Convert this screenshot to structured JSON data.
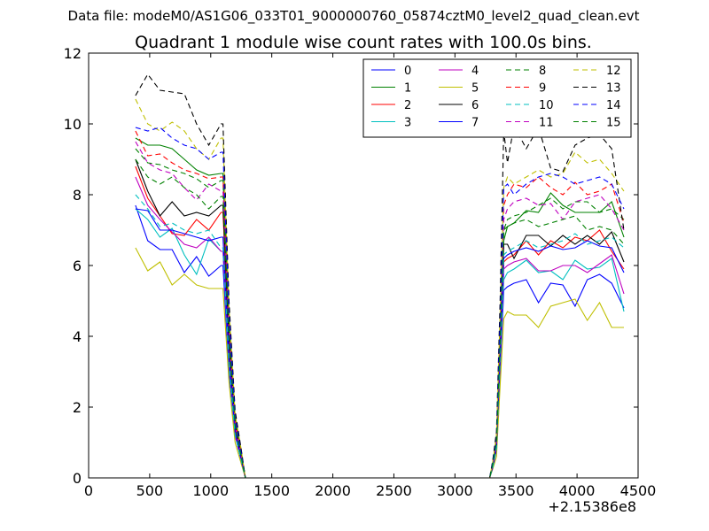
{
  "chart_data": {
    "type": "line",
    "suptitle": "Data file: modeM0/AS1G06_033T01_9000000760_05874cztM0_level2_quad_clean.evt",
    "title": "Quadrant 1 module wise count rates with 100.0s bins.",
    "xlabel": "",
    "ylabel": "",
    "xlim": [
      0,
      4500
    ],
    "ylim": [
      0,
      12
    ],
    "x_offset_label": "+2.15386e8",
    "xticks": [
      0,
      500,
      1000,
      1500,
      2000,
      2500,
      3000,
      3500,
      4000,
      4500
    ],
    "yticks": [
      0,
      2,
      4,
      6,
      8,
      10,
      12
    ],
    "legend_position": "top-right",
    "legend_columns": 4,
    "x": [
      384,
      484,
      584,
      684,
      784,
      884,
      984,
      1084,
      1100,
      1150,
      1200,
      1250,
      1284,
      1384,
      1484,
      1584,
      1684,
      1784,
      1884,
      1984,
      2084,
      2184,
      2284,
      2384,
      2484,
      2584,
      2684,
      2784,
      2884,
      2984,
      3084,
      3184,
      3284,
      3310,
      3340,
      3370,
      3400,
      3430,
      3484,
      3584,
      3684,
      3784,
      3884,
      3984,
      4084,
      4184,
      4284,
      4384
    ],
    "series": [
      {
        "name": "0",
        "color": "#0000ff",
        "dash": false,
        "values": [
          7.7,
          6.7,
          6.45,
          6.45,
          5.8,
          6.25,
          5.7,
          6.0,
          6.0,
          3.0,
          1.2,
          0.5,
          0,
          0,
          0,
          0,
          0,
          0,
          0,
          0,
          0,
          0,
          0,
          0,
          0,
          0,
          0,
          0,
          0,
          0,
          0,
          0,
          0,
          0.3,
          0.8,
          3.0,
          5.3,
          5.4,
          5.5,
          5.6,
          4.95,
          5.5,
          5.45,
          4.85,
          5.6,
          5.75,
          5.5,
          4.8
        ]
      },
      {
        "name": "1",
        "color": "#008000",
        "dash": false,
        "values": [
          9.6,
          9.4,
          9.4,
          9.3,
          9.0,
          8.7,
          8.55,
          8.6,
          8.6,
          4.4,
          1.7,
          0.7,
          0,
          0,
          0,
          0,
          0,
          0,
          0,
          0,
          0,
          0,
          0,
          0,
          0,
          0,
          0,
          0,
          0,
          0,
          0,
          0,
          0,
          0.4,
          1.1,
          4.2,
          6.7,
          7.1,
          7.2,
          7.55,
          7.5,
          8.05,
          7.7,
          7.5,
          7.5,
          7.5,
          7.8,
          6.8
        ]
      },
      {
        "name": "2",
        "color": "#ff0000",
        "dash": false,
        "values": [
          8.8,
          7.9,
          7.4,
          6.9,
          6.85,
          7.3,
          7.0,
          7.5,
          7.5,
          3.8,
          1.4,
          0.6,
          0,
          0,
          0,
          0,
          0,
          0,
          0,
          0,
          0,
          0,
          0,
          0,
          0,
          0,
          0,
          0,
          0,
          0,
          0,
          0,
          0,
          0.35,
          0.9,
          3.6,
          6.1,
          6.2,
          6.3,
          6.7,
          6.3,
          6.7,
          6.5,
          6.8,
          6.7,
          7.0,
          6.4,
          5.9
        ]
      },
      {
        "name": "3",
        "color": "#00bfbf",
        "dash": false,
        "values": [
          7.6,
          7.3,
          6.8,
          7.05,
          6.3,
          5.75,
          6.75,
          6.4,
          6.4,
          3.2,
          1.2,
          0.5,
          0,
          0,
          0,
          0,
          0,
          0,
          0,
          0,
          0,
          0,
          0,
          0,
          0,
          0,
          0,
          0,
          0,
          0,
          0,
          0,
          0,
          0.3,
          0.8,
          3.1,
          5.6,
          5.8,
          5.9,
          6.15,
          5.8,
          5.85,
          5.6,
          6.15,
          5.9,
          5.95,
          6.2,
          4.7
        ]
      },
      {
        "name": "4",
        "color": "#bf00bf",
        "dash": false,
        "values": [
          8.5,
          7.7,
          7.3,
          6.95,
          6.6,
          6.5,
          6.8,
          6.4,
          6.4,
          3.3,
          1.2,
          0.5,
          0,
          0,
          0,
          0,
          0,
          0,
          0,
          0,
          0,
          0,
          0,
          0,
          0,
          0,
          0,
          0,
          0,
          0,
          0,
          0,
          0,
          0.3,
          0.8,
          3.2,
          5.9,
          6.0,
          6.1,
          6.2,
          5.85,
          5.85,
          6.0,
          6.0,
          5.8,
          6.05,
          6.3,
          5.2
        ]
      },
      {
        "name": "5",
        "color": "#bfbf00",
        "dash": false,
        "values": [
          6.5,
          5.85,
          6.1,
          5.45,
          5.75,
          5.45,
          5.35,
          5.35,
          5.35,
          2.7,
          1.0,
          0.4,
          0,
          0,
          0,
          0,
          0,
          0,
          0,
          0,
          0,
          0,
          0,
          0,
          0,
          0,
          0,
          0,
          0,
          0,
          0,
          0,
          0,
          0.25,
          0.6,
          2.6,
          4.5,
          4.7,
          4.6,
          4.6,
          4.25,
          4.85,
          4.95,
          5.05,
          4.45,
          4.95,
          4.25,
          4.25
        ]
      },
      {
        "name": "6",
        "color": "#000000",
        "dash": false,
        "values": [
          9.0,
          8.1,
          7.4,
          7.8,
          7.4,
          7.5,
          7.4,
          7.7,
          7.7,
          3.9,
          1.5,
          0.6,
          0,
          0,
          0,
          0,
          0,
          0,
          0,
          0,
          0,
          0,
          0,
          0,
          0,
          0,
          0,
          0,
          0,
          0,
          0,
          0,
          0,
          0.35,
          0.95,
          3.7,
          6.6,
          6.6,
          6.2,
          6.85,
          6.85,
          6.55,
          6.85,
          6.6,
          6.85,
          6.6,
          6.95,
          6.1
        ]
      },
      {
        "name": "7",
        "color": "#0000ff",
        "dash": false,
        "values": [
          7.6,
          7.55,
          7.0,
          7.0,
          6.9,
          6.8,
          6.7,
          6.8,
          6.8,
          3.4,
          1.3,
          0.5,
          0,
          0,
          0,
          0,
          0,
          0,
          0,
          0,
          0,
          0,
          0,
          0,
          0,
          0,
          0,
          0,
          0,
          0,
          0,
          0,
          0,
          0.3,
          0.85,
          3.4,
          6.2,
          6.3,
          6.4,
          6.5,
          6.4,
          6.55,
          6.45,
          6.5,
          6.7,
          6.55,
          6.5,
          5.8
        ]
      },
      {
        "name": "8",
        "color": "#008000",
        "dash": true,
        "values": [
          9.3,
          8.9,
          8.85,
          8.7,
          8.6,
          8.45,
          8.2,
          8.4,
          8.4,
          4.2,
          1.6,
          0.6,
          0,
          0,
          0,
          0,
          0,
          0,
          0,
          0,
          0,
          0,
          0,
          0,
          0,
          0,
          0,
          0,
          0,
          0,
          0,
          0,
          0,
          0.4,
          1.0,
          4.0,
          7.0,
          7.3,
          7.4,
          7.5,
          7.7,
          7.9,
          7.6,
          7.8,
          7.8,
          7.5,
          7.6,
          7.3
        ]
      },
      {
        "name": "9",
        "color": "#ff0000",
        "dash": true,
        "values": [
          9.8,
          9.1,
          9.15,
          8.9,
          8.7,
          8.6,
          8.45,
          8.5,
          8.5,
          4.3,
          1.6,
          0.7,
          0,
          0,
          0,
          0,
          0,
          0,
          0,
          0,
          0,
          0,
          0,
          0,
          0,
          0,
          0,
          0,
          0,
          0,
          0,
          0,
          0,
          0.4,
          1.1,
          4.3,
          7.7,
          8.0,
          8.3,
          8.2,
          8.5,
          8.2,
          8.0,
          8.35,
          8.0,
          8.1,
          8.3,
          7.2
        ]
      },
      {
        "name": "10",
        "color": "#00bfbf",
        "dash": true,
        "values": [
          8.0,
          7.6,
          7.1,
          7.2,
          7.0,
          6.9,
          7.0,
          6.5,
          6.5,
          3.3,
          1.2,
          0.5,
          0,
          0,
          0,
          0,
          0,
          0,
          0,
          0,
          0,
          0,
          0,
          0,
          0,
          0,
          0,
          0,
          0,
          0,
          0,
          0,
          0,
          0.3,
          0.85,
          3.4,
          6.3,
          6.4,
          6.5,
          6.7,
          6.5,
          6.6,
          6.7,
          6.9,
          6.6,
          6.7,
          6.8,
          6.5
        ]
      },
      {
        "name": "11",
        "color": "#bf00bf",
        "dash": true,
        "values": [
          9.5,
          8.9,
          8.7,
          8.6,
          8.2,
          7.85,
          8.3,
          8.1,
          8.1,
          4.1,
          1.5,
          0.6,
          0,
          0,
          0,
          0,
          0,
          0,
          0,
          0,
          0,
          0,
          0,
          0,
          0,
          0,
          0,
          0,
          0,
          0,
          0,
          0,
          0,
          0.4,
          1.0,
          4.0,
          7.3,
          7.6,
          7.8,
          7.9,
          7.7,
          7.75,
          7.3,
          7.8,
          7.9,
          8.0,
          7.6,
          7.0
        ]
      },
      {
        "name": "12",
        "color": "#bfbf00",
        "dash": true,
        "values": [
          10.7,
          10.0,
          9.8,
          10.05,
          9.8,
          9.3,
          9.0,
          9.6,
          9.6,
          4.8,
          1.8,
          0.8,
          0,
          0,
          0,
          0,
          0,
          0,
          0,
          0,
          0,
          0,
          0,
          0,
          0,
          0,
          0,
          0,
          0,
          0,
          0,
          0,
          0,
          0.45,
          1.2,
          4.6,
          8.2,
          8.5,
          8.3,
          8.5,
          8.7,
          8.5,
          8.6,
          9.2,
          8.9,
          9.0,
          8.6,
          8.1
        ]
      },
      {
        "name": "13",
        "color": "#000000",
        "dash": true,
        "values": [
          10.8,
          11.4,
          10.95,
          10.9,
          10.85,
          10.0,
          9.4,
          10.0,
          10.0,
          5.0,
          1.9,
          0.8,
          0,
          0,
          0,
          0,
          0,
          0,
          0,
          0,
          0,
          0,
          0,
          0,
          0,
          0,
          0,
          0,
          0,
          0,
          0,
          0,
          0,
          0.5,
          1.3,
          5.0,
          9.8,
          8.9,
          9.95,
          9.3,
          9.9,
          8.75,
          8.65,
          9.4,
          9.6,
          9.7,
          9.3,
          7.0
        ]
      },
      {
        "name": "14",
        "color": "#0000ff",
        "dash": true,
        "values": [
          9.9,
          9.8,
          9.9,
          9.6,
          9.4,
          9.3,
          9.0,
          9.2,
          9.2,
          4.6,
          1.7,
          0.7,
          0,
          0,
          0,
          0,
          0,
          0,
          0,
          0,
          0,
          0,
          0,
          0,
          0,
          0,
          0,
          0,
          0,
          0,
          0,
          0,
          0,
          0.45,
          1.1,
          4.4,
          8.2,
          8.3,
          8.0,
          8.3,
          8.5,
          8.6,
          8.5,
          8.3,
          8.4,
          8.5,
          8.3,
          7.6
        ]
      },
      {
        "name": "15",
        "color": "#008000",
        "dash": true,
        "values": [
          9.0,
          8.5,
          8.3,
          8.5,
          8.2,
          8.0,
          7.6,
          7.95,
          7.95,
          4.0,
          1.5,
          0.6,
          0,
          0,
          0,
          0,
          0,
          0,
          0,
          0,
          0,
          0,
          0,
          0,
          0,
          0,
          0,
          0,
          0,
          0,
          0,
          0,
          0,
          0.4,
          1.0,
          3.8,
          7.0,
          7.1,
          7.2,
          7.3,
          7.1,
          7.2,
          7.3,
          7.4,
          7.0,
          7.1,
          7.0,
          6.6
        ]
      }
    ]
  }
}
